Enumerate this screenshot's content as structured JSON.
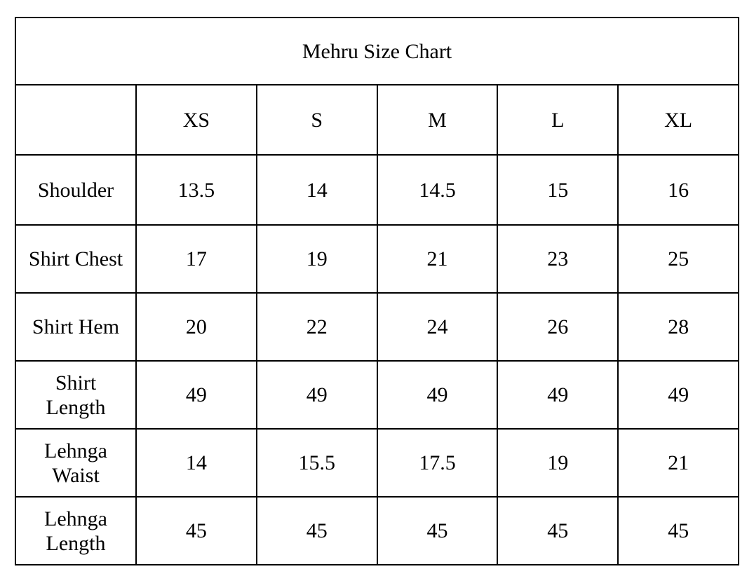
{
  "title": "Mehru Size Chart",
  "columns": [
    "XS",
    "S",
    "M",
    "L",
    "XL"
  ],
  "rows": [
    {
      "label": "Shoulder",
      "values": [
        "13.5",
        "14",
        "14.5",
        "15",
        "16"
      ]
    },
    {
      "label": "Shirt Chest",
      "values": [
        "17",
        "19",
        "21",
        "23",
        "25"
      ]
    },
    {
      "label": "Shirt Hem",
      "values": [
        "20",
        "22",
        "24",
        "26",
        "28"
      ]
    },
    {
      "label": "Shirt Length",
      "values": [
        "49",
        "49",
        "49",
        "49",
        "49"
      ]
    },
    {
      "label": "Lehnga Waist",
      "values": [
        "14",
        "15.5",
        "17.5",
        "19",
        "21"
      ]
    },
    {
      "label": "Lehnga Length",
      "values": [
        "45",
        "45",
        "45",
        "45",
        "45"
      ]
    }
  ]
}
